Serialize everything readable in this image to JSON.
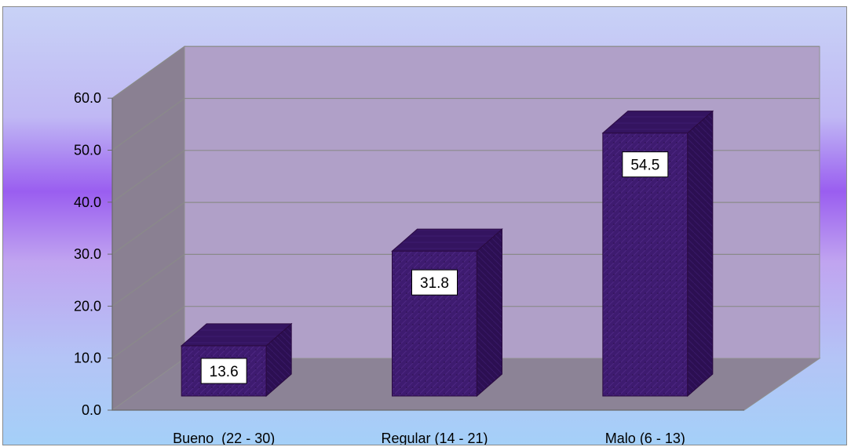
{
  "chart_data": {
    "type": "bar",
    "style": "3d-column",
    "categories": [
      "Bueno  (22 - 30)",
      "Regular (14 - 21)",
      "Malo (6 - 13)"
    ],
    "values": [
      13.6,
      31.8,
      54.5
    ],
    "value_labels": [
      "13.6",
      "31.8",
      "54.5"
    ],
    "y_ticks": [
      "0.0",
      "10.0",
      "20.0",
      "30.0",
      "40.0",
      "50.0",
      "60.0"
    ],
    "ylim": [
      0,
      60
    ],
    "title": "",
    "xlabel": "",
    "ylabel": "",
    "grid": true,
    "legend": "none",
    "colors": {
      "bar_front": "#3d1a6e",
      "bar_side": "#2a0f4e",
      "bar_top": "#2f1257",
      "back_wall": "#b0a0c8",
      "side_wall": "#8a8092",
      "floor": "#8c8396",
      "background_top": "#c8d4f8",
      "background_mid": "#9a5cf0",
      "background_bottom": "#a8cff8"
    }
  }
}
